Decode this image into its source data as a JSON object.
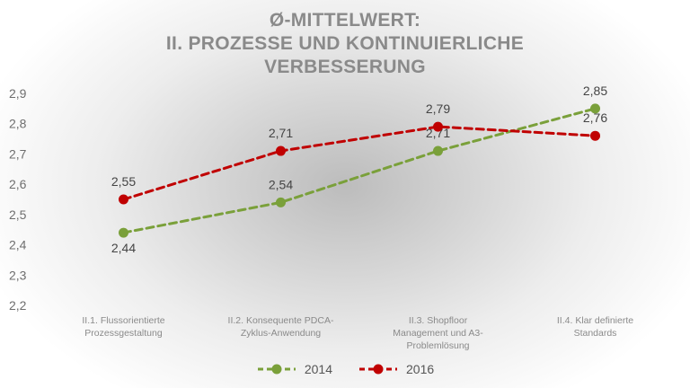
{
  "chart_data": {
    "type": "line",
    "title_lines": [
      "Ø-MITTELWERT:",
      "II. PROZESSE UND KONTINUIERLICHE",
      "VERBESSERUNG"
    ],
    "categories": [
      [
        "II.1. Flussorientierte",
        "Prozessgestaltung"
      ],
      [
        "II.2. Konsequente PDCA-",
        "Zyklus-Anwendung"
      ],
      [
        "II.3. Shopfloor",
        "Management und A3-",
        "Problemlösung"
      ],
      [
        "II.4. Klar definierte",
        "Standards"
      ]
    ],
    "series": [
      {
        "name": "2014",
        "color": "#7aa03a",
        "values": [
          2.44,
          2.54,
          2.71,
          2.85
        ],
        "labels": [
          "2,44",
          "2,54",
          "2,71",
          "2,85"
        ]
      },
      {
        "name": "2016",
        "color": "#c00000",
        "values": [
          2.55,
          2.71,
          2.79,
          2.76
        ],
        "labels": [
          "2,55",
          "2,71",
          "2,79",
          "2,76"
        ]
      }
    ],
    "ylim": [
      2.2,
      2.9
    ],
    "yticks": [
      2.2,
      2.3,
      2.4,
      2.5,
      2.6,
      2.7,
      2.8,
      2.9
    ],
    "ytick_labels": [
      "2,2",
      "2,3",
      "2,4",
      "2,5",
      "2,6",
      "2,7",
      "2,8",
      "2,9"
    ],
    "grid": false,
    "legend_position": "bottom",
    "line_style": "dashed"
  }
}
